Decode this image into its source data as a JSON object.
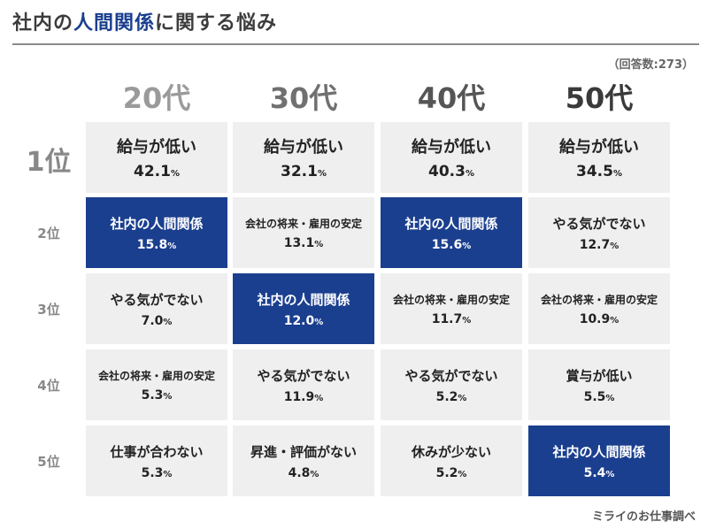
{
  "title": {
    "prefix": "社内の",
    "highlight": "人間関係",
    "suffix": "に関する悩み"
  },
  "respondents": "（回答数:273）",
  "source": "ミライのお仕事調べ",
  "colors": {
    "highlight_bg": "#1b3f8f",
    "cell_bg": "#efefef"
  },
  "chart_data": {
    "type": "table",
    "columns": [
      "20代",
      "30代",
      "40代",
      "50代"
    ],
    "rows": [
      "1位",
      "2位",
      "3位",
      "4位",
      "5位"
    ],
    "unit": "%",
    "highlight_item": "社内の人間関係",
    "cells": [
      [
        {
          "label": "給与が低い",
          "value": "42.1"
        },
        {
          "label": "給与が低い",
          "value": "32.1"
        },
        {
          "label": "給与が低い",
          "value": "40.3"
        },
        {
          "label": "給与が低い",
          "value": "34.5"
        }
      ],
      [
        {
          "label": "社内の人間関係",
          "value": "15.8"
        },
        {
          "label": "会社の将来・雇用の安定",
          "value": "13.1"
        },
        {
          "label": "社内の人間関係",
          "value": "15.6"
        },
        {
          "label": "やる気がでない",
          "value": "12.7"
        }
      ],
      [
        {
          "label": "やる気がでない",
          "value": "7.0"
        },
        {
          "label": "社内の人間関係",
          "value": "12.0"
        },
        {
          "label": "会社の将来・雇用の安定",
          "value": "11.7"
        },
        {
          "label": "会社の将来・雇用の安定",
          "value": "10.9"
        }
      ],
      [
        {
          "label": "会社の将来・雇用の安定",
          "value": "5.3"
        },
        {
          "label": "やる気がでない",
          "value": "11.9"
        },
        {
          "label": "やる気がでない",
          "value": "5.2"
        },
        {
          "label": "賞与が低い",
          "value": "5.5"
        }
      ],
      [
        {
          "label": "仕事が合わない",
          "value": "5.3"
        },
        {
          "label": "昇進・評価がない",
          "value": "4.8"
        },
        {
          "label": "休みが少ない",
          "value": "5.2"
        },
        {
          "label": "社内の人間関係",
          "value": "5.4"
        }
      ]
    ]
  }
}
